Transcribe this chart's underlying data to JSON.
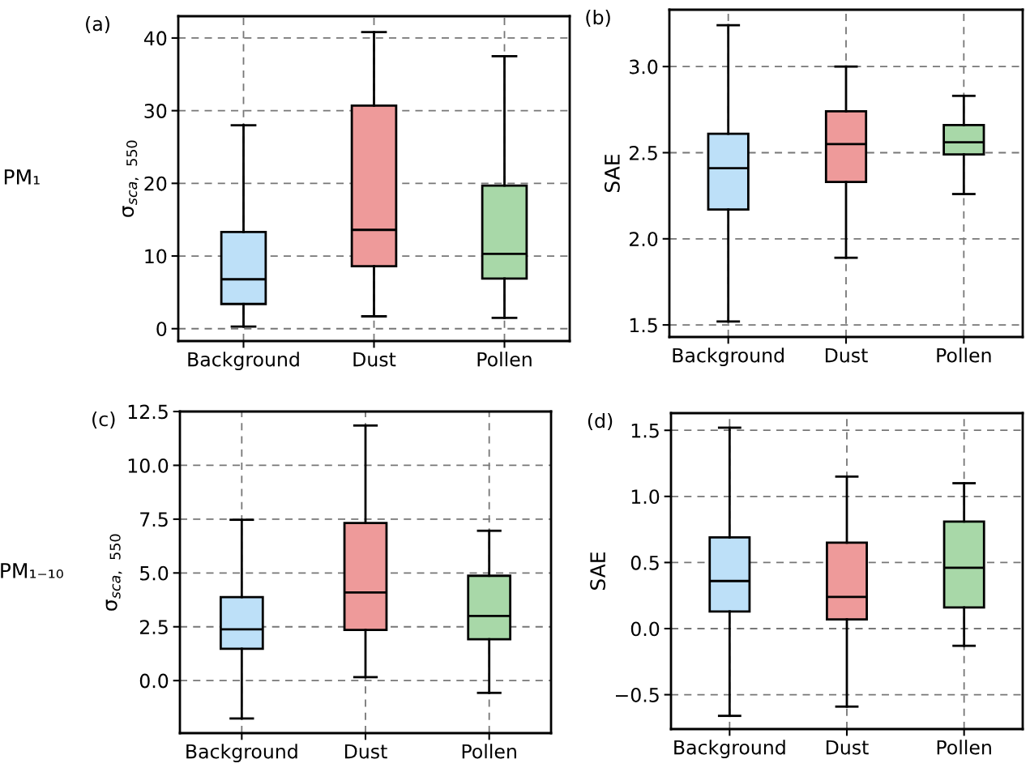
{
  "chart_data": [
    {
      "type": "box",
      "ylabel": "σ$_{sca,}$ $_{550}$",
      "annotations": [
        "(a)",
        "PM₁"
      ],
      "categories": [
        "Background",
        "Dust",
        "Pollen"
      ],
      "colors": [
        "#bde0f8",
        "#ee9a9a",
        "#a8d8a8"
      ],
      "ylim": [
        -1.7,
        43
      ],
      "yticks": [
        0,
        10,
        20,
        30,
        40
      ],
      "grid": true,
      "boxes": [
        {
          "low": 0.3,
          "q1": 3.4,
          "median": 6.8,
          "q3": 13.3,
          "high": 28
        },
        {
          "low": 1.7,
          "q1": 8.6,
          "median": 13.6,
          "q3": 30.7,
          "high": 40.8
        },
        {
          "low": 1.5,
          "q1": 6.9,
          "median": 10.3,
          "q3": 19.7,
          "high": 37.5
        }
      ]
    },
    {
      "type": "box",
      "ylabel": "SAE",
      "annotations": [
        "(b)"
      ],
      "categories": [
        "Background",
        "Dust",
        "Pollen"
      ],
      "colors": [
        "#bde0f8",
        "#ee9a9a",
        "#a8d8a8"
      ],
      "ylim": [
        1.43,
        3.33
      ],
      "yticks": [
        {
          "value": 1.5,
          "label": "1.5"
        },
        {
          "value": 2.0,
          "label": "2.0"
        },
        {
          "value": 2.5,
          "label": "2.5"
        },
        {
          "value": 3.0,
          "label": "3.0"
        }
      ],
      "grid": true,
      "boxes": [
        {
          "low": 1.52,
          "q1": 2.17,
          "median": 2.41,
          "q3": 2.61,
          "high": 3.24
        },
        {
          "low": 1.89,
          "q1": 2.33,
          "median": 2.55,
          "q3": 2.74,
          "high": 3.0
        },
        {
          "low": 2.26,
          "q1": 2.49,
          "median": 2.56,
          "q3": 2.66,
          "high": 2.83
        }
      ]
    },
    {
      "type": "box",
      "ylabel": "σ$_{sca,}$ $_{550}$",
      "annotations": [
        "(c)",
        "PM₁₋₁₀"
      ],
      "categories": [
        "Background",
        "Dust",
        "Pollen"
      ],
      "colors": [
        "#bde0f8",
        "#ee9a9a",
        "#a8d8a8"
      ],
      "ylim": [
        -2.44,
        12.5
      ],
      "yticks": [
        {
          "value": 0,
          "label": "0.0"
        },
        2.5,
        {
          "value": 5,
          "label": "5.0"
        },
        7.5,
        {
          "value": 10,
          "label": "10.0"
        },
        12.5
      ],
      "grid": true,
      "boxes": [
        {
          "low": -1.76,
          "q1": 1.48,
          "median": 2.38,
          "q3": 3.88,
          "high": 7.47
        },
        {
          "low": 0.16,
          "q1": 2.35,
          "median": 4.09,
          "q3": 7.32,
          "high": 11.85
        },
        {
          "low": -0.57,
          "q1": 1.92,
          "median": 3.0,
          "q3": 4.87,
          "high": 6.96
        }
      ]
    },
    {
      "type": "box",
      "ylabel": "SAE",
      "annotations": [
        "(d)"
      ],
      "categories": [
        "Background",
        "Dust",
        "Pollen"
      ],
      "colors": [
        "#bde0f8",
        "#ee9a9a",
        "#a8d8a8"
      ],
      "ylim": [
        -0.76,
        1.63
      ],
      "yticks": [
        {
          "value": -0.5,
          "label": "−0.5"
        },
        {
          "value": 0,
          "label": "0.0"
        },
        0.5,
        {
          "value": 1,
          "label": "1.0"
        },
        1.5
      ],
      "grid": true,
      "boxes": [
        {
          "low": -0.66,
          "q1": 0.13,
          "median": 0.36,
          "q3": 0.69,
          "high": 1.52
        },
        {
          "low": -0.59,
          "q1": 0.07,
          "median": 0.24,
          "q3": 0.65,
          "high": 1.15
        },
        {
          "low": -0.13,
          "q1": 0.16,
          "median": 0.46,
          "q3": 0.81,
          "high": 1.1
        }
      ]
    }
  ]
}
